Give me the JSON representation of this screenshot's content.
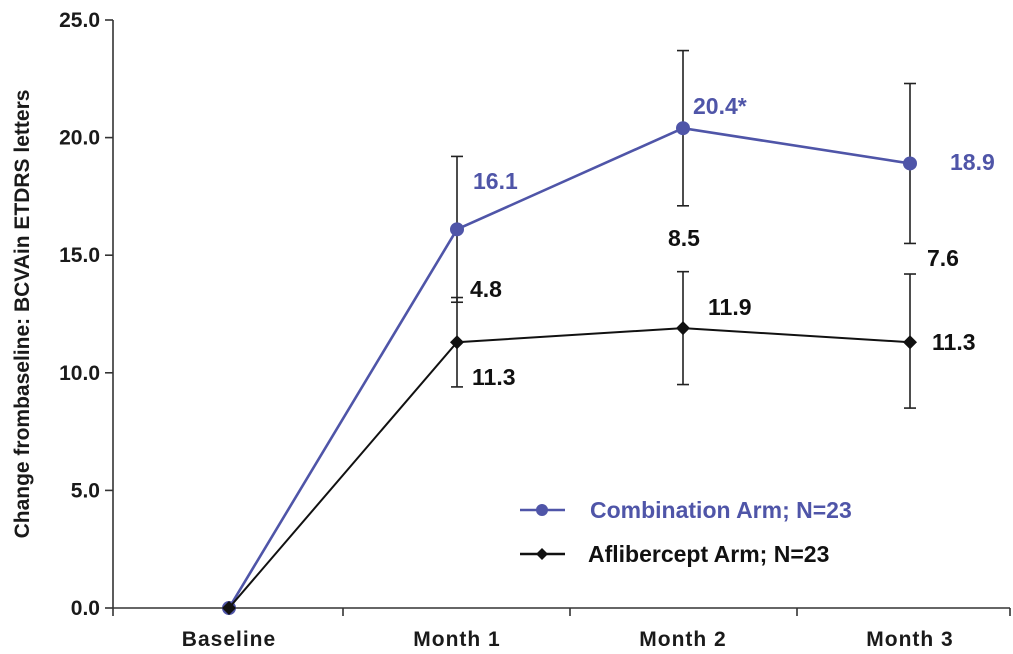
{
  "chart_data": {
    "type": "line",
    "title": "",
    "xlabel": "",
    "ylabel": "Change frombaseline: BCVAin ETDRS letters",
    "ylim": [
      0,
      25
    ],
    "yticks": [
      "0.0",
      "5.0",
      "10.0",
      "15.0",
      "20.0",
      "25.0"
    ],
    "categories": [
      "Baseline",
      "Month 1",
      "Month 2",
      "Month 3"
    ],
    "grid": false,
    "legend_position": "bottom-right",
    "series": [
      {
        "name": "Combination Arm; N=23",
        "color": "#4f55a8",
        "marker": "circle",
        "values": [
          0,
          16.1,
          20.4,
          18.9
        ],
        "error_low": [
          null,
          3.1,
          3.3,
          3.4
        ],
        "error_high": [
          null,
          3.1,
          3.3,
          3.4
        ],
        "point_labels": [
          "",
          "16.1",
          "20.4*",
          "18.9"
        ]
      },
      {
        "name": "Aflibercept Arm; N=23",
        "color": "#111111",
        "marker": "diamond",
        "values": [
          0,
          11.3,
          11.9,
          11.3
        ],
        "error_low": [
          null,
          1.9,
          2.4,
          2.8
        ],
        "error_high": [
          null,
          1.9,
          2.4,
          2.9
        ],
        "point_labels": [
          "",
          "11.3",
          "11.9",
          "11.3"
        ]
      }
    ],
    "annotations": [
      {
        "text": "4.8",
        "category": "Month 1"
      },
      {
        "text": "8.5",
        "category": "Month 2"
      },
      {
        "text": "7.6",
        "category": "Month 3"
      }
    ]
  }
}
